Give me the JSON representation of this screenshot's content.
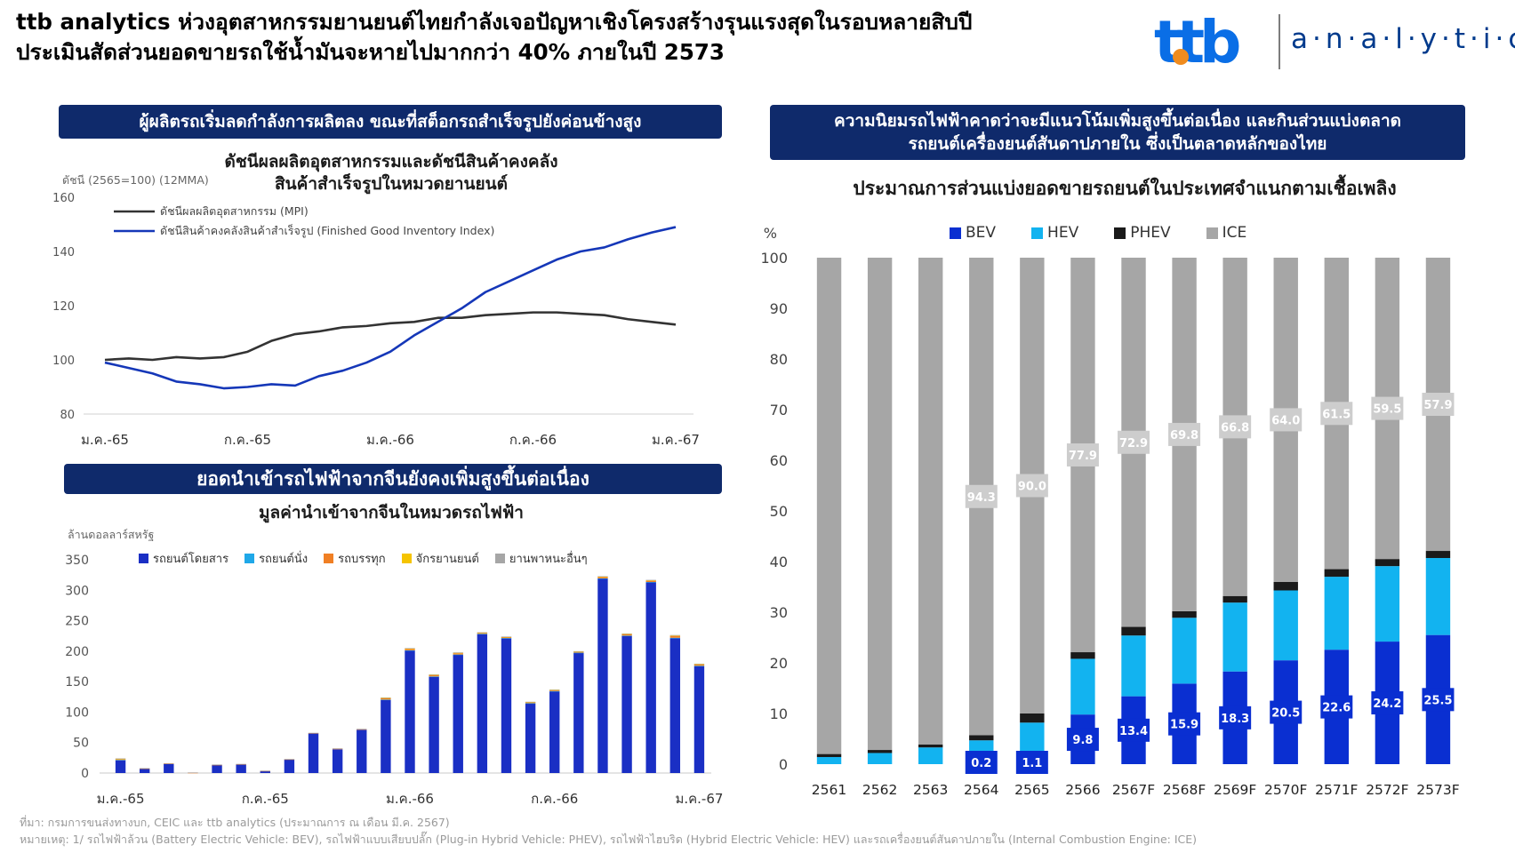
{
  "header": {
    "headline_line1": "ttb analytics ห่วงอุตสาหกรรมยานยนต์ไทยกำลังเจอปัญหาเชิงโครงสร้างรุนแรงสุดในรอบหลายสิบปี",
    "headline_line2": "ประเมินสัดส่วนยอดขายรถใช้น้ำมันจะหายไปมากกว่า 40% ภายในปี 2573",
    "logo_text": "a·n·a·l·y·t·i·c·s",
    "logo_mark": "ttb",
    "brand_colors": {
      "navy": "#0f2a6b",
      "blue": "#0a6ee6",
      "orange": "#f08c1e"
    }
  },
  "panel_left_top": {
    "banner": "ผู้ผลิตรถเริ่มลดกำลังการผลิตลง ขณะที่สต็อกรถสำเร็จรูปยังค่อนข้างสูง",
    "title_line1": "ดัชนีผลผลิตอุตสาหกรรมและดัชนีสินค้าคงคลัง",
    "title_line2": "สินค้าสำเร็จรูปในหมวดยานยนต์",
    "unit_label": "ดัชนี (2565=100) (12MMA)"
  },
  "panel_left_bottom": {
    "banner": "ยอดนำเข้ารถไฟฟ้าจากจีนยังคงเพิ่มสูงขึ้นต่อเนื่อง",
    "title": "มูลค่านำเข้าจากจีนในหมวดรถไฟฟ้า",
    "unit_label": "ล้านดอลลาร์สหรัฐ"
  },
  "panel_right": {
    "banner_line1": "ความนิยมรถไฟฟ้าคาดว่าจะมีแนวโน้มเพิ่มสูงขึ้นต่อเนื่อง และกินส่วนแบ่งตลาด",
    "banner_line2": "รถยนต์เครื่องยนต์สันดาปภายใน ซึ่งเป็นตลาดหลักของไทย",
    "title": "ประมาณการส่วนแบ่งยอดขายรถยนต์ในประเทศจำแนกตามเชื้อเพลิง",
    "unit_label": "%"
  },
  "footer": {
    "source": "ที่มา: กรมการขนส่งทางบก, CEIC และ ttb analytics (ประมาณการ ณ เดือน มี.ค. 2567)",
    "note": "หมายเหตุ: 1/ รถไฟฟ้าล้วน (Battery Electric Vehicle: BEV), รถไฟฟ้าแบบเสียบปลั๊ก (Plug-in Hybrid Vehicle: PHEV), รถไฟฟ้าไฮบริด (Hybrid Electric Vehicle: HEV) และรถเครื่องยนต์สันดาปภายใน (Internal Combustion Engine: ICE)"
  },
  "chart_data": [
    {
      "type": "line",
      "title": "ดัชนีผลผลิตอุตสาหกรรมและดัชนีสินค้าคงคลังสินค้าสำเร็จรูปในหมวดยานยนต์",
      "ylabel": "ดัชนี (2565=100) (12MMA)",
      "ylim": [
        80,
        160
      ],
      "yticks": [
        80,
        100,
        120,
        140,
        160
      ],
      "xtick_labels": [
        "ม.ค.-65",
        "ก.ค.-65",
        "ม.ค.-66",
        "ก.ค.-66",
        "ม.ค.-67"
      ],
      "grid": false,
      "legend_position": "top-left",
      "series": [
        {
          "name": "ดัชนีผลผลิตอุตสาหกรรม (MPI)",
          "color": "#333333",
          "values": [
            100,
            100.5,
            100,
            101,
            100.5,
            101,
            103,
            107,
            109.5,
            110.5,
            112,
            112.5,
            113.5,
            114,
            115.5,
            115.5,
            116.5,
            117,
            117.5,
            117.5,
            117,
            116.5,
            115,
            114,
            113
          ]
        },
        {
          "name": "ดัชนีสินค้าคงคลังสินค้าสำเร็จรูป (Finished Good Inventory Index)",
          "color": "#1537b8",
          "values": [
            99,
            97,
            95,
            92,
            91,
            89.5,
            90,
            91,
            90.5,
            94,
            96,
            99,
            103,
            109,
            114,
            119,
            125,
            129,
            133,
            137,
            140,
            141.5,
            144.5,
            147,
            149
          ]
        }
      ]
    },
    {
      "type": "bar",
      "stacked": true,
      "title": "มูลค่านำเข้าจากจีนในหมวดรถไฟฟ้า",
      "ylabel": "ล้านดอลลาร์สหรัฐ",
      "ylim": [
        0,
        350
      ],
      "yticks": [
        0,
        50,
        100,
        150,
        200,
        250,
        300,
        350
      ],
      "xtick_labels": [
        "ม.ค.-65",
        "ก.ค.-65",
        "ม.ค.-66",
        "ก.ค.-66",
        "ม.ค.-67"
      ],
      "legend_position": "top",
      "categories_count": 25,
      "series": [
        {
          "name": "รถยนต์โดยสาร",
          "color": "#1a2fc4",
          "values": [
            21,
            7,
            15,
            0,
            13,
            14,
            3,
            22,
            65,
            39,
            71,
            120,
            201,
            158,
            194,
            228,
            221,
            114,
            134,
            197,
            319,
            225,
            313,
            221,
            175
          ]
        },
        {
          "name": "รถยนต์นั่ง",
          "color": "#1fa8e8",
          "values": [
            0.5,
            0,
            0,
            0,
            0,
            0,
            0,
            0,
            0,
            0,
            0,
            0.5,
            0.5,
            0.5,
            0.5,
            0.5,
            0.5,
            0.5,
            0.5,
            0.5,
            0.5,
            0.5,
            0.5,
            1,
            1
          ]
        },
        {
          "name": "รถบรรทุก",
          "color": "#f07f24",
          "values": [
            1,
            0.5,
            0.5,
            0.5,
            0.5,
            0.5,
            0.5,
            0.5,
            0.5,
            1,
            1,
            2,
            2,
            2,
            2,
            1.5,
            1.5,
            1.5,
            1.5,
            1.5,
            2,
            2,
            2,
            3,
            2
          ]
        },
        {
          "name": "จักรยานยนต์",
          "color": "#f5c400",
          "values": [
            1,
            0,
            0,
            0,
            0,
            0,
            0,
            0,
            0,
            0,
            0,
            1,
            1,
            1,
            1,
            0.5,
            0.5,
            0.5,
            0.5,
            0.5,
            1,
            1,
            1,
            1,
            1
          ]
        },
        {
          "name": "ยานพาหนะอื่นๆ",
          "color": "#a6a6a6",
          "values": [
            0.5,
            0.5,
            0.5,
            0.5,
            0.5,
            0.5,
            0.5,
            0.5,
            0.5,
            0.5,
            0.5,
            0.5,
            0.5,
            0.5,
            0.5,
            0.5,
            0.5,
            0.5,
            0.5,
            0.5,
            0.5,
            0.5,
            0.5,
            0.5,
            0.5
          ]
        }
      ]
    },
    {
      "type": "bar",
      "stacked": true,
      "title": "ประมาณการส่วนแบ่งยอดขายรถยนต์ในประเทศจำแนกตามเชื้อเพลิง",
      "ylabel": "%",
      "ylim": [
        0,
        100
      ],
      "yticks": [
        0,
        10,
        20,
        30,
        40,
        50,
        60,
        70,
        80,
        90,
        100
      ],
      "legend_position": "top",
      "categories": [
        "2561",
        "2562",
        "2563",
        "2564",
        "2565",
        "2566",
        "2567F",
        "2568F",
        "2569F",
        "2570F",
        "2571F",
        "2572F",
        "2573F"
      ],
      "series": [
        {
          "name": "BEV",
          "color": "#0a2fd1",
          "values": [
            0,
            0,
            0,
            0.2,
            1.1,
            9.8,
            13.4,
            15.9,
            18.3,
            20.5,
            22.6,
            24.2,
            25.5
          ],
          "labels": [
            "",
            "",
            "",
            "0.2",
            "1.1",
            "9.8",
            "13.4",
            "15.9",
            "18.3",
            "20.5",
            "22.6",
            "24.2",
            "25.5"
          ]
        },
        {
          "name": "HEV",
          "color": "#12b3f0",
          "values": [
            1.4,
            2.2,
            3.3,
            4.5,
            7.1,
            11.0,
            12.0,
            13.0,
            13.6,
            13.8,
            14.4,
            14.9,
            15.2
          ]
        },
        {
          "name": "PHEV",
          "color": "#1a1a1a",
          "values": [
            0.6,
            0.6,
            0.6,
            1.0,
            1.8,
            1.3,
            1.7,
            1.3,
            1.3,
            1.7,
            1.5,
            1.4,
            1.4
          ]
        },
        {
          "name": "ICE",
          "color": "#a6a6a6",
          "values": [
            98,
            97.2,
            96.1,
            94.3,
            90.0,
            77.9,
            72.9,
            69.8,
            66.8,
            64.0,
            61.5,
            59.5,
            57.9
          ],
          "labels": [
            "",
            "",
            "",
            "94.3",
            "90.0",
            "77.9",
            "72.9",
            "69.8",
            "66.8",
            "64.0",
            "61.5",
            "59.5",
            "57.9"
          ]
        }
      ]
    }
  ]
}
